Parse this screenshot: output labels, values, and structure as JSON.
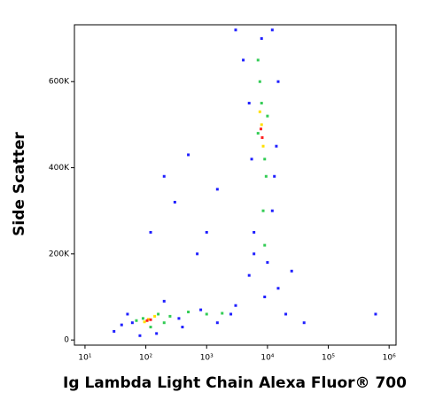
{
  "chart_data": {
    "type": "scatter",
    "x_label": "Ig Lambda Light Chain Alexa Fluor® 700",
    "y_label": "Side Scatter",
    "xscale": "log",
    "xlim": [
      6.7,
      1300000
    ],
    "ylim": [
      -12000,
      732000
    ],
    "xticks": [
      {
        "value": 10,
        "label": "10¹"
      },
      {
        "value": 100,
        "label": "10²"
      },
      {
        "value": 1000,
        "label": "10³"
      },
      {
        "value": 10000,
        "label": "10⁴"
      },
      {
        "value": 100000,
        "label": "10⁵"
      },
      {
        "value": 1000000,
        "label": "10⁶"
      }
    ],
    "yticks": [
      0,
      {
        "value": 200000,
        "label": "200K"
      },
      {
        "value": 400000,
        "label": "400K"
      },
      {
        "value": 600000,
        "label": "600K"
      }
    ],
    "series": [
      {
        "color": "#1f1fff",
        "x": [
          30,
          50,
          80,
          200,
          400,
          1500,
          3000,
          5000,
          6000,
          12000,
          15000,
          20000,
          40000,
          600000,
          700,
          1000,
          300,
          200,
          1500,
          120,
          500,
          8000,
          3000,
          4000,
          12000,
          15000,
          5000,
          14000,
          6000,
          10000,
          25000,
          2500,
          800,
          60,
          40,
          150,
          350,
          5500,
          13000,
          9000
        ],
        "values": [
          20000,
          60000,
          10000,
          90000,
          30000,
          40000,
          80000,
          150000,
          250000,
          300000,
          120000,
          60000,
          40000,
          60000,
          200000,
          250000,
          320000,
          380000,
          350000,
          250000,
          430000,
          700000,
          720000,
          650000,
          720000,
          600000,
          550000,
          450000,
          200000,
          180000,
          160000,
          60000,
          70000,
          40000,
          35000,
          15000,
          50000,
          420000,
          380000,
          100000
        ]
      },
      {
        "color": "#33cc55",
        "x": [
          90,
          160,
          70,
          250,
          500,
          1000,
          1800,
          7000,
          9000,
          8000,
          7500,
          9500,
          8500,
          9000,
          7000,
          10000,
          120,
          200
        ],
        "values": [
          50000,
          60000,
          45000,
          55000,
          65000,
          60000,
          62000,
          480000,
          420000,
          550000,
          600000,
          380000,
          300000,
          220000,
          650000,
          520000,
          30000,
          40000
        ]
      },
      {
        "color": "#ffe000",
        "x": [
          110,
          140,
          95,
          8000,
          8500,
          7500
        ],
        "values": [
          48000,
          55000,
          42000,
          500000,
          450000,
          530000
        ]
      },
      {
        "color": "#ff2020",
        "x": [
          120,
          105,
          8200,
          7800
        ],
        "values": [
          47000,
          45000,
          470000,
          490000
        ]
      }
    ]
  }
}
